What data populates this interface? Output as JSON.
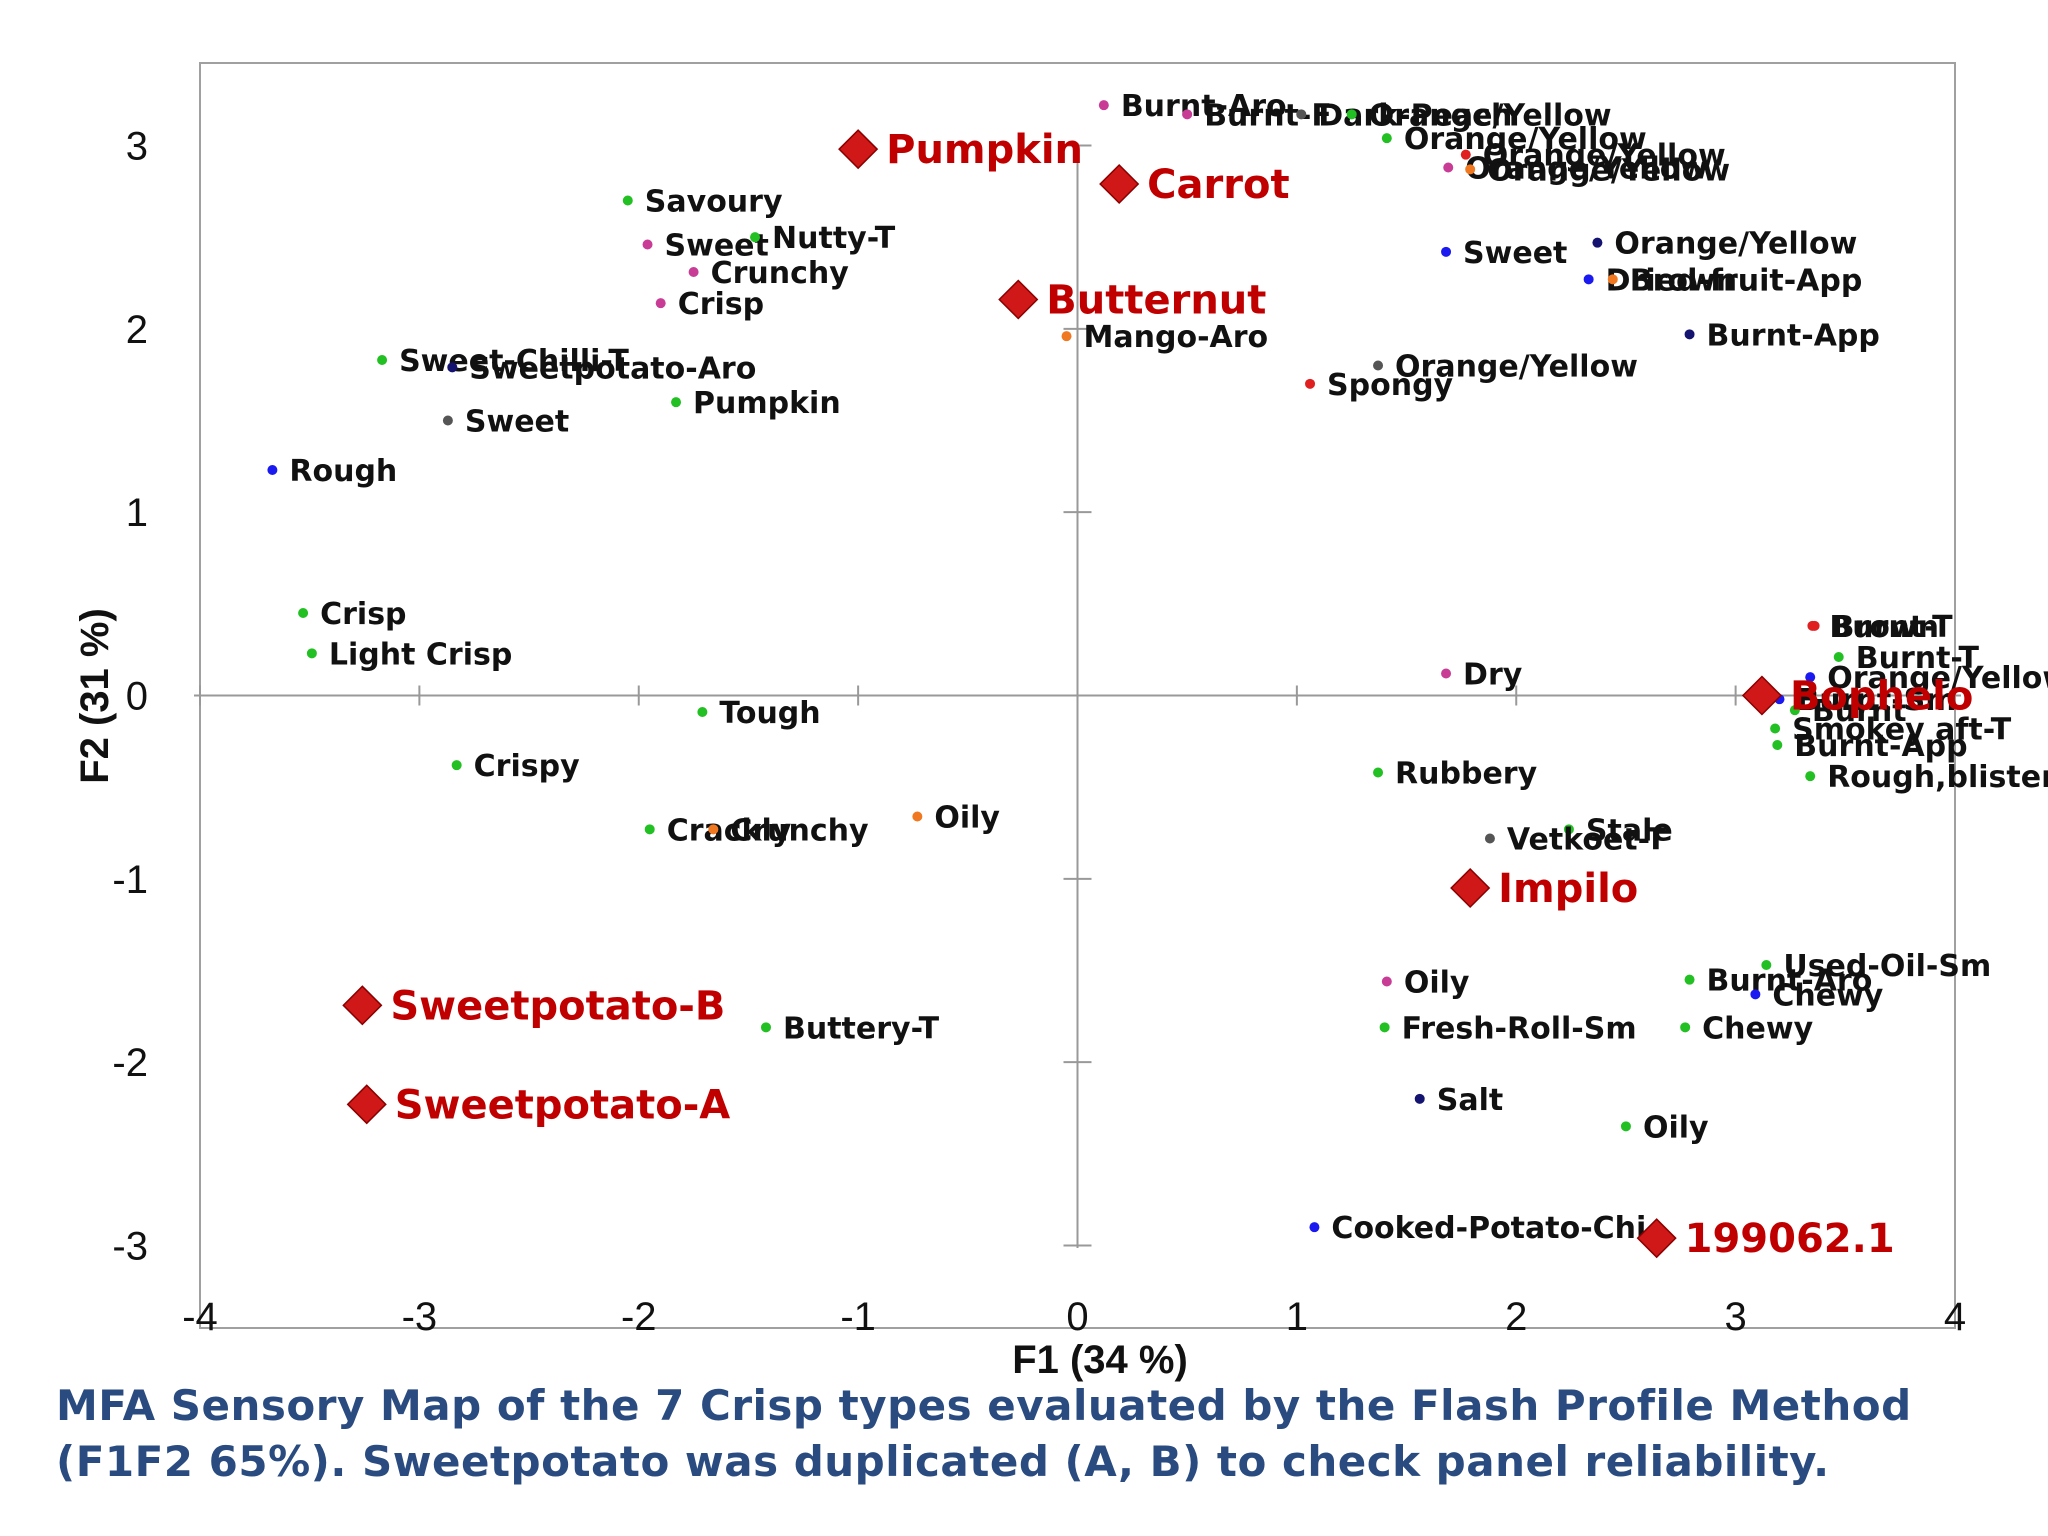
{
  "chart_data": {
    "type": "scatter",
    "title": "",
    "xlabel": "F1 (34 %)",
    "ylabel": "F2 (31 %)",
    "xlim": [
      -4,
      4
    ],
    "ylim": [
      -3.45,
      3.45
    ],
    "xticks": [
      "-4",
      "-3",
      "-2",
      "-1",
      "0",
      "1",
      "2",
      "3",
      "4"
    ],
    "yticks": [
      "-3",
      "-2",
      "-1",
      "0",
      "1",
      "2",
      "3"
    ],
    "grid": false,
    "legend": "none",
    "products": [
      {
        "label": "Pumpkin",
        "x": -1.0,
        "y": 2.98
      },
      {
        "label": "Butternut",
        "x": -0.27,
        "y": 2.16
      },
      {
        "label": "Carrot",
        "x": 0.19,
        "y": 2.79
      },
      {
        "label": "Bophelo",
        "x": 3.12,
        "y": 0.0
      },
      {
        "label": "Impilo",
        "x": 1.79,
        "y": -1.05
      },
      {
        "label": "Sweetpotato-B",
        "x": -3.26,
        "y": -1.69
      },
      {
        "label": "Sweetpotato-A",
        "x": -3.24,
        "y": -2.23
      },
      {
        "label": "199062.1",
        "x": 2.64,
        "y": -2.96
      }
    ],
    "attributes": [
      {
        "label": "Burnt-Aro",
        "x": 0.12,
        "y": 3.22,
        "color": "#c83c96"
      },
      {
        "label": "Burnt-F",
        "x": 0.5,
        "y": 3.17,
        "color": "#c83c96"
      },
      {
        "label": "Dark-Peach",
        "x": 1.02,
        "y": 3.17,
        "color": "#555555"
      },
      {
        "label": "Orange/Yellow",
        "x": 1.25,
        "y": 3.17,
        "color": "#22c022"
      },
      {
        "label": "Orange/Yellow",
        "x": 1.41,
        "y": 3.04,
        "color": "#22c022"
      },
      {
        "label": "Orange/Yellow",
        "x": 1.77,
        "y": 2.95,
        "color": "#e02020"
      },
      {
        "label": "Orange/Yellow",
        "x": 1.69,
        "y": 2.88,
        "color": "#c83c96"
      },
      {
        "label": "Orange/Yellow",
        "x": 1.79,
        "y": 2.87,
        "color": "#f07820"
      },
      {
        "label": "Sweet",
        "x": 1.68,
        "y": 2.42,
        "color": "#1a1af0"
      },
      {
        "label": "Orange/Yellow",
        "x": 2.37,
        "y": 2.47,
        "color": "#141470"
      },
      {
        "label": "Dried-fruit-App",
        "x": 2.33,
        "y": 2.27,
        "color": "#1a1af0"
      },
      {
        "label": "Brown",
        "x": 2.44,
        "y": 2.27,
        "color": "#f07820"
      },
      {
        "label": "Burnt-App",
        "x": 2.79,
        "y": 1.97,
        "color": "#141470"
      },
      {
        "label": "Mango-Aro",
        "x": -0.05,
        "y": 1.96,
        "color": "#f07820"
      },
      {
        "label": "Orange/Yellow",
        "x": 1.37,
        "y": 1.8,
        "color": "#555555"
      },
      {
        "label": "Spongy",
        "x": 1.06,
        "y": 1.7,
        "color": "#e02020"
      },
      {
        "label": "Savoury",
        "x": -2.05,
        "y": 2.7,
        "color": "#22c022"
      },
      {
        "label": "Sweet",
        "x": -1.96,
        "y": 2.46,
        "color": "#c83c96"
      },
      {
        "label": "Nutty-T",
        "x": -1.47,
        "y": 2.5,
        "color": "#22c022"
      },
      {
        "label": "Crunchy",
        "x": -1.75,
        "y": 2.31,
        "color": "#c83c96"
      },
      {
        "label": "Crisp",
        "x": -1.9,
        "y": 2.14,
        "color": "#c83c96"
      },
      {
        "label": "Sweet-Chilli-T",
        "x": -3.17,
        "y": 1.83,
        "color": "#22c022"
      },
      {
        "label": "Sweetpotato-Aro",
        "x": -2.85,
        "y": 1.79,
        "color": "#141470"
      },
      {
        "label": "Pumpkin",
        "x": -1.83,
        "y": 1.6,
        "color": "#22c022"
      },
      {
        "label": "Sweet",
        "x": -2.87,
        "y": 1.5,
        "color": "#555555"
      },
      {
        "label": "Rough",
        "x": -3.67,
        "y": 1.23,
        "color": "#1a1af0"
      },
      {
        "label": "Crisp",
        "x": -3.53,
        "y": 0.45,
        "color": "#22c022"
      },
      {
        "label": "Light Crisp",
        "x": -3.49,
        "y": 0.23,
        "color": "#22c022"
      },
      {
        "label": "Tough",
        "x": -1.71,
        "y": -0.09,
        "color": "#22c022"
      },
      {
        "label": "Crispy",
        "x": -2.83,
        "y": -0.38,
        "color": "#22c022"
      },
      {
        "label": "Crackly",
        "x": -1.95,
        "y": -0.73,
        "color": "#22c022"
      },
      {
        "label": "Crunchy",
        "x": -1.66,
        "y": -0.73,
        "color": "#f07820"
      },
      {
        "label": "Oily",
        "x": -0.73,
        "y": -0.66,
        "color": "#f07820"
      },
      {
        "label": "Buttery-T",
        "x": -1.42,
        "y": -1.81,
        "color": "#22c022"
      },
      {
        "label": "Burnt-T",
        "x": 3.35,
        "y": 0.38,
        "color": "#e02020"
      },
      {
        "label": "Brown",
        "x": 3.36,
        "y": 0.38,
        "color": "#e02020"
      },
      {
        "label": "Burnt-T",
        "x": 3.47,
        "y": 0.21,
        "color": "#22c022"
      },
      {
        "label": "Dry",
        "x": 1.68,
        "y": 0.12,
        "color": "#c83c96"
      },
      {
        "label": "Orange/Yellow",
        "x": 3.34,
        "y": 0.1,
        "color": "#1a1af0"
      },
      {
        "label": "Burnt-Sm",
        "x": 3.2,
        "y": -0.02,
        "color": "#1a1af0"
      },
      {
        "label": "Burnt",
        "x": 3.27,
        "y": -0.08,
        "color": "#22c022"
      },
      {
        "label": "Smokey aft-T",
        "x": 3.18,
        "y": -0.18,
        "color": "#22c022"
      },
      {
        "label": "Burnt-App",
        "x": 3.19,
        "y": -0.27,
        "color": "#22c022"
      },
      {
        "label": "Rubbery",
        "x": 1.37,
        "y": -0.42,
        "color": "#22c022"
      },
      {
        "label": "Rough,blisters",
        "x": 3.34,
        "y": -0.44,
        "color": "#22c022"
      },
      {
        "label": "Stale",
        "x": 2.24,
        "y": -0.73,
        "color": "#22c022"
      },
      {
        "label": "Vetkoet-T",
        "x": 1.88,
        "y": -0.78,
        "color": "#555555"
      },
      {
        "label": "Used-Oil-Sm",
        "x": 3.14,
        "y": -1.47,
        "color": "#22c022"
      },
      {
        "label": "Burnt-Aro",
        "x": 2.79,
        "y": -1.55,
        "color": "#22c022"
      },
      {
        "label": "Oily",
        "x": 1.41,
        "y": -1.56,
        "color": "#c83c96"
      },
      {
        "label": "Chewy",
        "x": 3.09,
        "y": -1.63,
        "color": "#1a1af0"
      },
      {
        "label": "Fresh-Roll-Sm",
        "x": 1.4,
        "y": -1.81,
        "color": "#22c022"
      },
      {
        "label": "Chewy",
        "x": 2.77,
        "y": -1.81,
        "color": "#22c022"
      },
      {
        "label": "Salt",
        "x": 1.56,
        "y": -2.2,
        "color": "#141470"
      },
      {
        "label": "Oily",
        "x": 2.5,
        "y": -2.35,
        "color": "#22c022"
      },
      {
        "label": "Cooked-Potato-Chi",
        "x": 1.08,
        "y": -2.9,
        "color": "#1a1af0"
      }
    ],
    "annotations": []
  },
  "caption": {
    "line1": "MFA Sensory Map of the 7 Crisp types evaluated by the Flash Profile Method",
    "line2": "(F1F2 65%). Sweetpotato was duplicated (A, B) to check panel reliability."
  },
  "colors": {
    "product_marker": "#d01818",
    "product_label": "#c00000",
    "caption": "#2a4b80",
    "axis": "#999999"
  }
}
